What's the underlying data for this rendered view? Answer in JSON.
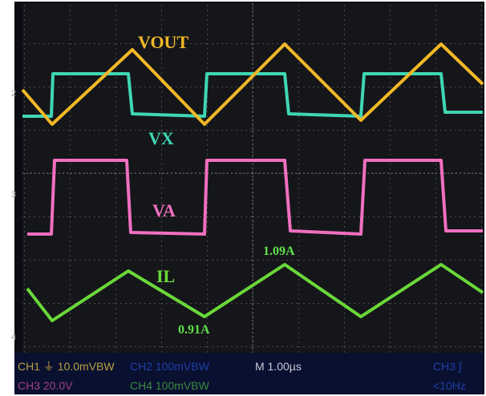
{
  "labels": {
    "vout": "VOUT",
    "vx": "VX",
    "va": "VA",
    "il": "IL"
  },
  "annotations": {
    "peak": "1.09A",
    "valley": "0.91A"
  },
  "channel_markers": {
    "ch2": "2",
    "ch3": "3",
    "ch4": "4"
  },
  "status_bar": {
    "row1": {
      "ch1": "CH1 ⏚ 10.0mVBW",
      "ch2": "CH2  100mVBW",
      "time": "M 1.00µs",
      "trigger": "CH3 ∫"
    },
    "row2": {
      "ch3": "CH3  20.0V",
      "ch4": "CH4  100mVBW",
      "freq": "<10Hz"
    }
  }
}
